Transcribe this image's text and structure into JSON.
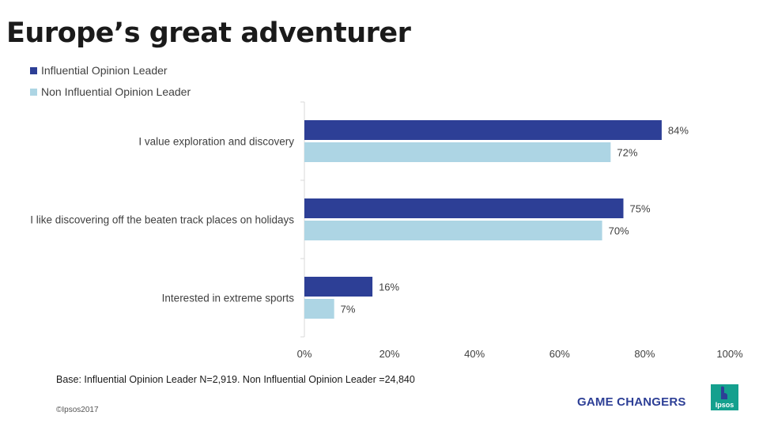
{
  "page": {
    "title": "Europe’s great adventurer",
    "footnote": "Base: Influential Opinion  Leader N=2,919. Non Influential Opinion Leader =24,840",
    "copyright": "©Ipsos2017",
    "brand_text": "GAME CHANGERS",
    "logo_text": "Ipsos"
  },
  "colors": {
    "series_1": "#2d3f96",
    "series_2": "#add5e4",
    "logo_green": "#14a08e",
    "logo_blue": "#2d3f96"
  },
  "chart_data": {
    "type": "bar",
    "orientation": "horizontal",
    "title": "",
    "xlabel": "",
    "ylabel": "",
    "categories": [
      "I value exploration and discovery",
      "I like discovering off the beaten track places on holidays",
      "Interested in extreme sports"
    ],
    "series": [
      {
        "name": "Influential Opinion Leader",
        "values": [
          84,
          75,
          16
        ],
        "labels": [
          "84%",
          "75%",
          "16%"
        ]
      },
      {
        "name": "Non Influential Opinion Leader",
        "values": [
          72,
          70,
          7
        ],
        "labels": [
          "72%",
          "70%",
          "7%"
        ]
      }
    ],
    "xlim": [
      0,
      100
    ],
    "xticks": [
      0,
      20,
      40,
      60,
      80,
      100
    ],
    "xtick_labels": [
      "0%",
      "20%",
      "40%",
      "60%",
      "80%",
      "100%"
    ],
    "grid": false,
    "legend": "top-left"
  }
}
